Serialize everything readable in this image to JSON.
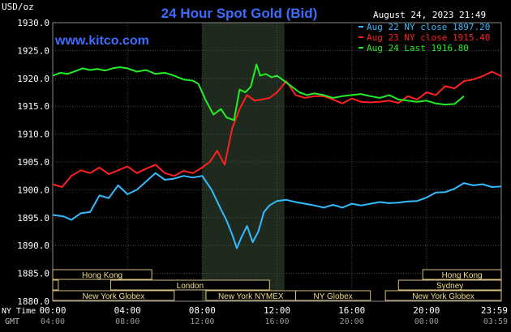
{
  "header": {
    "title": "24 Hour Spot Gold (Bid)",
    "unit": "USD/oz",
    "timestamp": "August 24, 2023 21:49",
    "watermark": "www.kitco.com"
  },
  "legend": [
    {
      "label": "Aug 22 NY close 1897.20",
      "color": "#33bbff"
    },
    {
      "label": "Aug 23 NY close 1915.40",
      "color": "#ff2020"
    },
    {
      "label": "Aug 24 Last 1916.80",
      "color": "#22ee22"
    }
  ],
  "axes": {
    "row1_label": "NY Time",
    "row2_label": "GMT",
    "ny_ticks": [
      "00:00",
      "04:00",
      "08:00",
      "12:00",
      "16:00",
      "20:00",
      "23:59"
    ],
    "gmt_ticks": [
      "04:00",
      "08:00",
      "12:00",
      "16:00",
      "20:00",
      "00:00",
      "03:59"
    ]
  },
  "sessions": {
    "row1": [
      "Hong Kong",
      "Hong Kong"
    ],
    "row2": [
      "London",
      "Sydney"
    ],
    "row3": [
      "New York Globex",
      "New York NYMEX",
      "NY Globex",
      "New York Globex"
    ]
  },
  "chart_data": {
    "type": "line",
    "title": "24 Hour Spot Gold (Bid)",
    "ylabel": "USD/oz",
    "x_unit": "hours (NY time)",
    "xlim": [
      0,
      24
    ],
    "ylim": [
      1880,
      1930
    ],
    "y_ticks": [
      "1930.0",
      "1925.0",
      "1920.0",
      "1915.0",
      "1910.0",
      "1905.0",
      "1900.0",
      "1895.0",
      "1890.0",
      "1885.0",
      "1880.0"
    ],
    "grid": true,
    "shaded_region": [
      8,
      12.4
    ],
    "legend_position": "top-right",
    "series": [
      {
        "name": "Aug 22 NY close 1897.20",
        "color": "#33bbff",
        "x": [
          0,
          0.6,
          1.0,
          1.5,
          2.0,
          2.5,
          3.0,
          3.5,
          4.0,
          4.5,
          5.0,
          5.5,
          6.0,
          6.5,
          7.0,
          7.5,
          8.0,
          8.5,
          9.0,
          9.3,
          9.6,
          9.85,
          10.1,
          10.4,
          10.7,
          11.0,
          11.3,
          11.6,
          12.0,
          12.5,
          13.0,
          13.5,
          14.0,
          14.5,
          15.0,
          15.5,
          16.0,
          16.5,
          17.0,
          17.5,
          18.0,
          18.5,
          19.0,
          19.5,
          20.0,
          20.5,
          21.0,
          21.5,
          22.0,
          22.5,
          23.0,
          23.5,
          24.0
        ],
        "y": [
          1895.5,
          1895.2,
          1894.6,
          1895.8,
          1896.0,
          1899.0,
          1898.5,
          1900.8,
          1899.2,
          1900.0,
          1901.5,
          1903.0,
          1901.8,
          1902.0,
          1902.5,
          1902.2,
          1902.5,
          1900.0,
          1896.5,
          1894.5,
          1892.0,
          1889.5,
          1891.5,
          1893.5,
          1890.6,
          1892.5,
          1896.0,
          1897.2,
          1898.0,
          1898.2,
          1897.8,
          1897.5,
          1897.2,
          1896.8,
          1897.3,
          1896.8,
          1897.5,
          1897.2,
          1897.5,
          1897.8,
          1897.6,
          1897.7,
          1897.9,
          1898.0,
          1898.6,
          1899.5,
          1899.6,
          1900.2,
          1901.2,
          1900.8,
          1901.0,
          1900.5,
          1900.6
        ]
      },
      {
        "name": "Aug 23 NY close 1915.40",
        "color": "#ff2020",
        "x": [
          0,
          0.5,
          1.0,
          1.5,
          2.0,
          2.5,
          3.0,
          3.5,
          4.0,
          4.5,
          5.0,
          5.5,
          6.0,
          6.5,
          7.0,
          7.5,
          8.0,
          8.4,
          8.8,
          9.2,
          9.6,
          10.0,
          10.4,
          10.8,
          11.2,
          11.6,
          12.0,
          12.5,
          13.0,
          13.5,
          14.0,
          14.5,
          15.0,
          15.5,
          16.0,
          16.5,
          17.0,
          17.5,
          18.0,
          18.5,
          19.0,
          19.5,
          20.0,
          20.5,
          21.0,
          21.5,
          22.0,
          22.5,
          23.0,
          23.5,
          24.0
        ],
        "y": [
          1901.0,
          1900.5,
          1902.5,
          1903.5,
          1903.0,
          1904.0,
          1902.8,
          1903.5,
          1904.2,
          1903.0,
          1903.8,
          1904.5,
          1903.0,
          1902.5,
          1903.4,
          1903.0,
          1904.0,
          1905.0,
          1907.0,
          1904.5,
          1911.0,
          1914.5,
          1917.0,
          1916.0,
          1916.2,
          1916.5,
          1917.5,
          1919.5,
          1917.0,
          1916.5,
          1916.8,
          1916.8,
          1916.2,
          1915.5,
          1916.4,
          1915.8,
          1915.7,
          1915.8,
          1916.0,
          1915.6,
          1916.8,
          1916.2,
          1917.5,
          1917.0,
          1918.6,
          1918.2,
          1919.5,
          1919.8,
          1920.4,
          1921.2,
          1920.4
        ]
      },
      {
        "name": "Aug 24 Last 1916.80",
        "color": "#22ee22",
        "x": [
          0,
          0.4,
          0.8,
          1.2,
          1.6,
          2.0,
          2.4,
          2.8,
          3.2,
          3.6,
          4.0,
          4.5,
          5.0,
          5.5,
          6.0,
          6.5,
          7.0,
          7.5,
          7.8,
          8.2,
          8.6,
          9.0,
          9.3,
          9.7,
          10.0,
          10.3,
          10.6,
          10.9,
          11.1,
          11.4,
          11.7,
          12.0,
          12.4,
          12.8,
          13.2,
          13.6,
          14.0,
          14.5,
          15.0,
          15.5,
          16.0,
          16.5,
          17.0,
          17.5,
          18.0,
          18.5,
          19.0,
          19.5,
          20.0,
          20.5,
          21.0,
          21.5,
          22.0
        ],
        "y": [
          1920.5,
          1921.0,
          1920.8,
          1921.3,
          1921.8,
          1921.5,
          1921.7,
          1921.4,
          1921.8,
          1922.0,
          1921.8,
          1921.2,
          1921.5,
          1920.8,
          1921.0,
          1920.5,
          1919.8,
          1919.6,
          1919.0,
          1916.0,
          1913.5,
          1914.5,
          1913.0,
          1912.5,
          1918.0,
          1917.5,
          1918.5,
          1922.5,
          1920.5,
          1920.8,
          1920.2,
          1920.5,
          1919.5,
          1918.5,
          1917.5,
          1917.0,
          1917.3,
          1917.0,
          1916.5,
          1916.8,
          1917.0,
          1917.2,
          1916.8,
          1916.5,
          1917.0,
          1916.2,
          1916.0,
          1915.8,
          1916.0,
          1915.5,
          1915.3,
          1915.4,
          1916.8
        ]
      }
    ]
  }
}
